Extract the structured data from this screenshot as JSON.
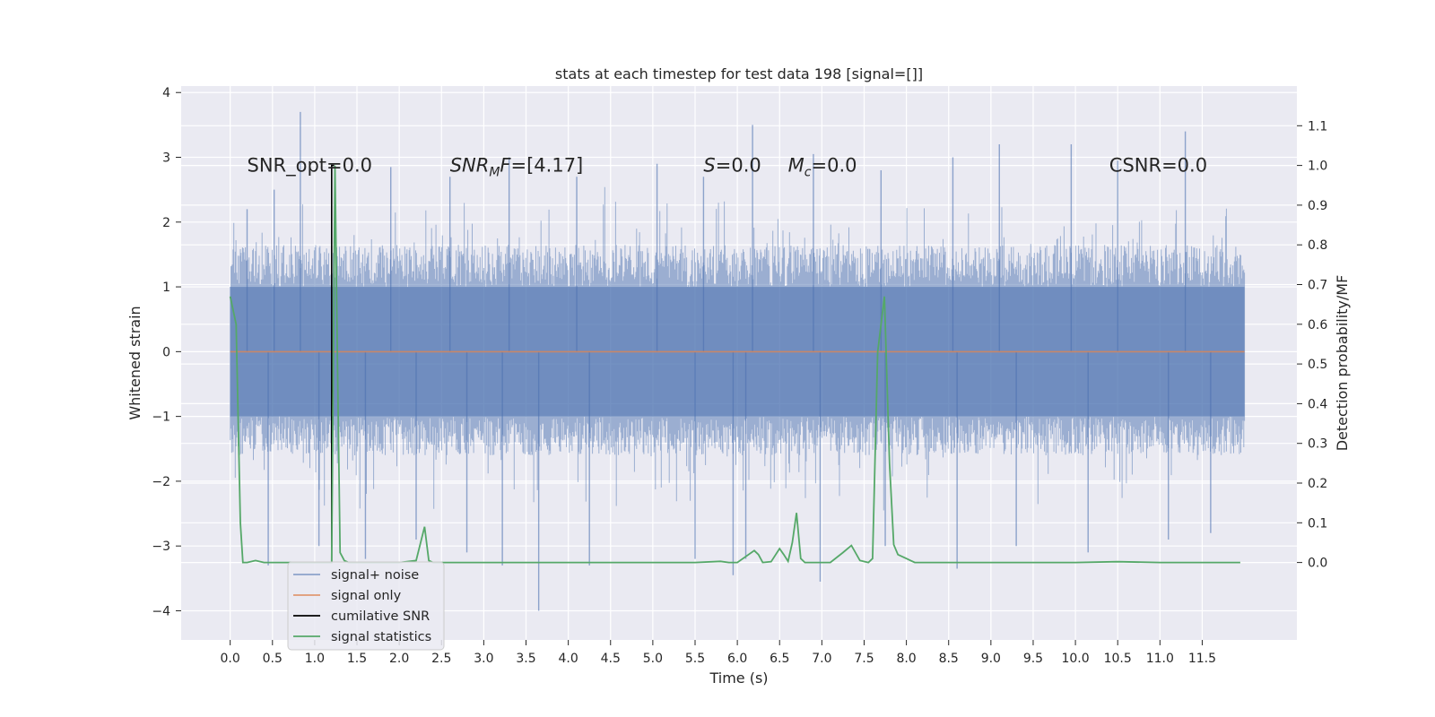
{
  "chart_data": {
    "type": "line",
    "title": "stats at each timestep for test data 198 [signal=[]]",
    "xlabel": "Time (s)",
    "ylabel": "Whitened strain",
    "ylabel_right": "Detection probability/MF",
    "xlim": [
      -0.58,
      12.62
    ],
    "ylim": [
      -4.45,
      4.1
    ],
    "ylim_right": [
      -0.195,
      1.2
    ],
    "xticks": [
      "0.0",
      "0.5",
      "1.0",
      "1.5",
      "2.0",
      "2.5",
      "3.0",
      "3.5",
      "4.0",
      "4.5",
      "5.0",
      "5.5",
      "6.0",
      "6.5",
      "7.0",
      "7.5",
      "8.0",
      "8.5",
      "9.0",
      "9.5",
      "10.0",
      "10.5",
      "11.0",
      "11.5"
    ],
    "yticks_left": [
      "4",
      "3",
      "2",
      "1",
      "0",
      "−1",
      "−2",
      "−3",
      "−4"
    ],
    "yticks_right": [
      "1.1",
      "1.0",
      "0.9",
      "0.8",
      "0.7",
      "0.6",
      "0.5",
      "0.4",
      "0.3",
      "0.2",
      "0.1",
      "0.0"
    ],
    "grid": true,
    "legend_placement": "lower-left",
    "annotations": [
      {
        "id": "snr_opt",
        "text": "SNR_opt=0.0"
      },
      {
        "id": "snr_mf",
        "text": "SNR_MF=[4.17]"
      },
      {
        "id": "s",
        "text": "S=0.0"
      },
      {
        "id": "mc",
        "text": "M_c=0.0"
      },
      {
        "id": "csnr",
        "text": "CSNR=0.0"
      }
    ],
    "colors": {
      "background": "#eaeaf2",
      "grid": "#ffffff",
      "signal_noise": "#4c72b0",
      "signal_only": "#dd8452",
      "cumulative_snr": "#000000",
      "signal_statistics": "#55a868"
    },
    "series": [
      {
        "name": "signal+ noise",
        "axis": "left",
        "description": "dense noise strain spanning 0.0–12.0 s, bulk within ±1.7, spikes from about −4.0 to +3.7",
        "x_range": [
          0.0,
          12.0
        ],
        "envelope_upper": 1.65,
        "envelope_lower": -1.6,
        "spikes": [
          [
            0.83,
            3.7
          ],
          [
            0.2,
            2.2
          ],
          [
            0.52,
            2.5
          ],
          [
            1.2,
            2.9
          ],
          [
            1.9,
            2.85
          ],
          [
            2.6,
            2.7
          ],
          [
            3.3,
            3.0
          ],
          [
            4.1,
            2.7
          ],
          [
            5.05,
            2.9
          ],
          [
            5.6,
            2.7
          ],
          [
            6.18,
            3.5
          ],
          [
            6.9,
            3.05
          ],
          [
            7.7,
            2.8
          ],
          [
            8.55,
            3.0
          ],
          [
            9.1,
            3.2
          ],
          [
            9.95,
            3.2
          ],
          [
            10.5,
            2.95
          ],
          [
            11.3,
            3.4
          ],
          [
            0.45,
            -3.3
          ],
          [
            1.05,
            -3.0
          ],
          [
            1.6,
            -3.2
          ],
          [
            2.2,
            -2.9
          ],
          [
            2.8,
            -3.1
          ],
          [
            3.22,
            -3.3
          ],
          [
            3.65,
            -4.0
          ],
          [
            4.25,
            -3.3
          ],
          [
            5.5,
            -3.2
          ],
          [
            5.95,
            -3.45
          ],
          [
            6.1,
            -3.2
          ],
          [
            6.98,
            -3.55
          ],
          [
            7.75,
            -3.0
          ],
          [
            8.6,
            -3.35
          ],
          [
            9.3,
            -3.0
          ],
          [
            10.15,
            -3.1
          ],
          [
            11.1,
            -2.9
          ],
          [
            11.6,
            -2.8
          ]
        ]
      },
      {
        "name": "signal only",
        "axis": "left",
        "x": [
          0.0,
          12.0
        ],
        "y": [
          0.0,
          0.0
        ]
      },
      {
        "name": "cumilative SNR",
        "axis": "right",
        "x": [
          1.2,
          1.2,
          1.23
        ],
        "y": [
          0.0,
          1.0,
          1.0
        ]
      },
      {
        "name": "signal statistics",
        "axis": "right",
        "x": [
          0.0,
          0.07,
          0.12,
          0.15,
          0.2,
          0.3,
          0.4,
          0.5,
          1.0,
          1.2,
          1.24,
          1.27,
          1.3,
          1.35,
          1.4,
          1.5,
          2.0,
          2.2,
          2.3,
          2.35,
          2.4,
          2.5,
          3.0,
          4.0,
          5.0,
          5.5,
          5.8,
          5.9,
          6.0,
          6.2,
          6.25,
          6.3,
          6.4,
          6.5,
          6.55,
          6.6,
          6.65,
          6.7,
          6.75,
          6.8,
          6.9,
          7.0,
          7.1,
          7.25,
          7.35,
          7.45,
          7.55,
          7.6,
          7.66,
          7.74,
          7.8,
          7.85,
          7.9,
          8.0,
          8.1,
          8.5,
          9.0,
          9.5,
          10.0,
          10.5,
          11.0,
          11.5,
          11.95
        ],
        "y": [
          0.67,
          0.6,
          0.1,
          0.0,
          0.0,
          0.005,
          0.0,
          0.0,
          0.0,
          0.0,
          1.0,
          0.5,
          0.025,
          0.005,
          0.0,
          0.0,
          0.0,
          0.005,
          0.09,
          0.005,
          0.0,
          0.0,
          0.0,
          0.0,
          0.0,
          0.0,
          0.003,
          0.0,
          0.0,
          0.03,
          0.02,
          0.0,
          0.002,
          0.035,
          0.02,
          0.003,
          0.05,
          0.125,
          0.01,
          0.0,
          0.0,
          0.0,
          0.0,
          0.025,
          0.043,
          0.005,
          0.0,
          0.01,
          0.53,
          0.67,
          0.25,
          0.045,
          0.02,
          0.01,
          0.0,
          0.0,
          0.0,
          0.0,
          0.0,
          0.002,
          0.0,
          0.0,
          0.0
        ]
      }
    ]
  }
}
